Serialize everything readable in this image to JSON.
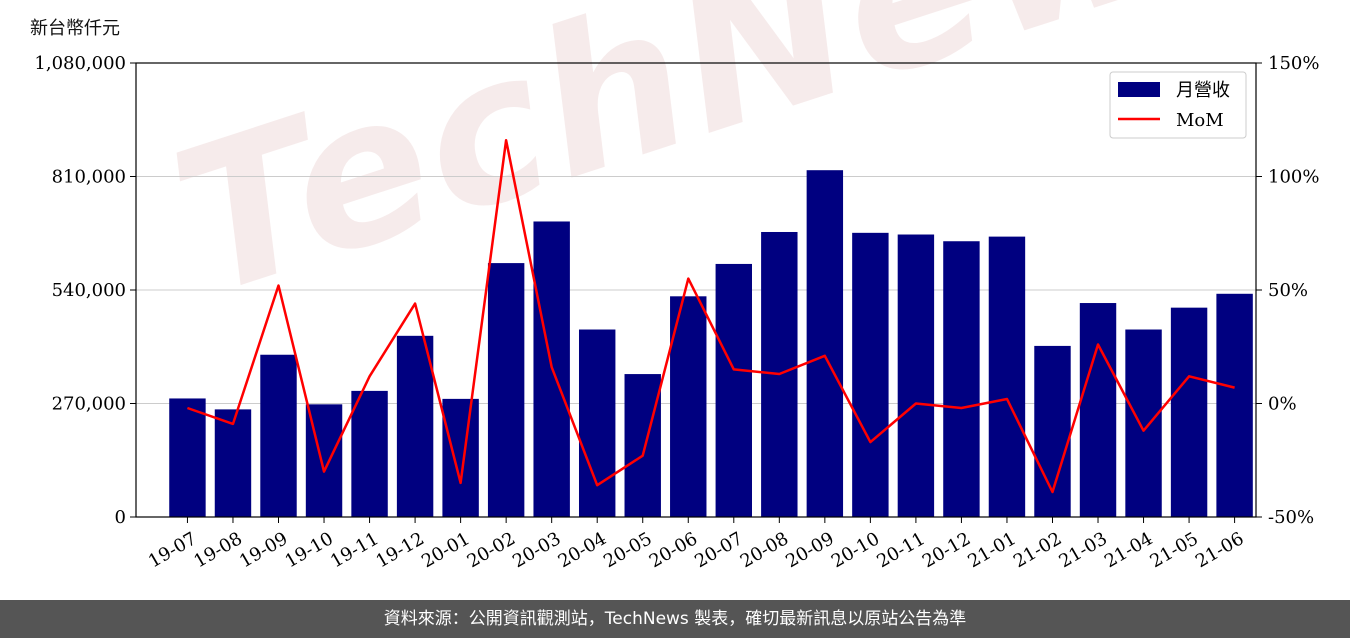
{
  "unit_label": "新台幣仟元",
  "footer_text": "資料來源：公開資訊觀測站，TechNews 製表，確切最新訊息以原站公告為準",
  "watermark_text": "TechNews",
  "colors": {
    "bar": "#000080",
    "line": "#ff0000",
    "grid": "#cccccc"
  },
  "chart_data": {
    "type": "bar",
    "categories": [
      "19-07",
      "19-08",
      "19-09",
      "19-10",
      "19-11",
      "19-12",
      "20-01",
      "20-02",
      "20-03",
      "20-04",
      "20-05",
      "20-06",
      "20-07",
      "20-08",
      "20-09",
      "20-10",
      "20-11",
      "20-12",
      "21-01",
      "21-02",
      "21-03",
      "21-04",
      "21-05",
      "21-06"
    ],
    "series": [
      {
        "name": "月營收",
        "type": "bar",
        "axis": "left",
        "values": [
          282000,
          256000,
          386000,
          268000,
          300000,
          431000,
          281000,
          604000,
          703000,
          446000,
          340000,
          525000,
          602000,
          678000,
          825000,
          676000,
          672000,
          656000,
          667000,
          407000,
          509000,
          446000,
          498000,
          531000
        ]
      },
      {
        "name": "MoM",
        "type": "line",
        "axis": "right",
        "values": [
          -2,
          -9,
          52,
          -30,
          12,
          44,
          -35,
          116,
          16,
          -36,
          -23,
          55,
          15,
          13,
          21,
          -17,
          0,
          -2,
          2,
          -39,
          26,
          -12,
          12,
          7
        ]
      }
    ],
    "y_left": {
      "ticks": [
        "0",
        "270,000",
        "540,000",
        "810,000",
        "1,080,000"
      ],
      "min": 0,
      "max": 1080000
    },
    "y_right": {
      "ticks": [
        "-50%",
        "0%",
        "50%",
        "100%",
        "150%"
      ],
      "min": -50,
      "max": 150
    },
    "grid": true,
    "legend": "top-right"
  }
}
